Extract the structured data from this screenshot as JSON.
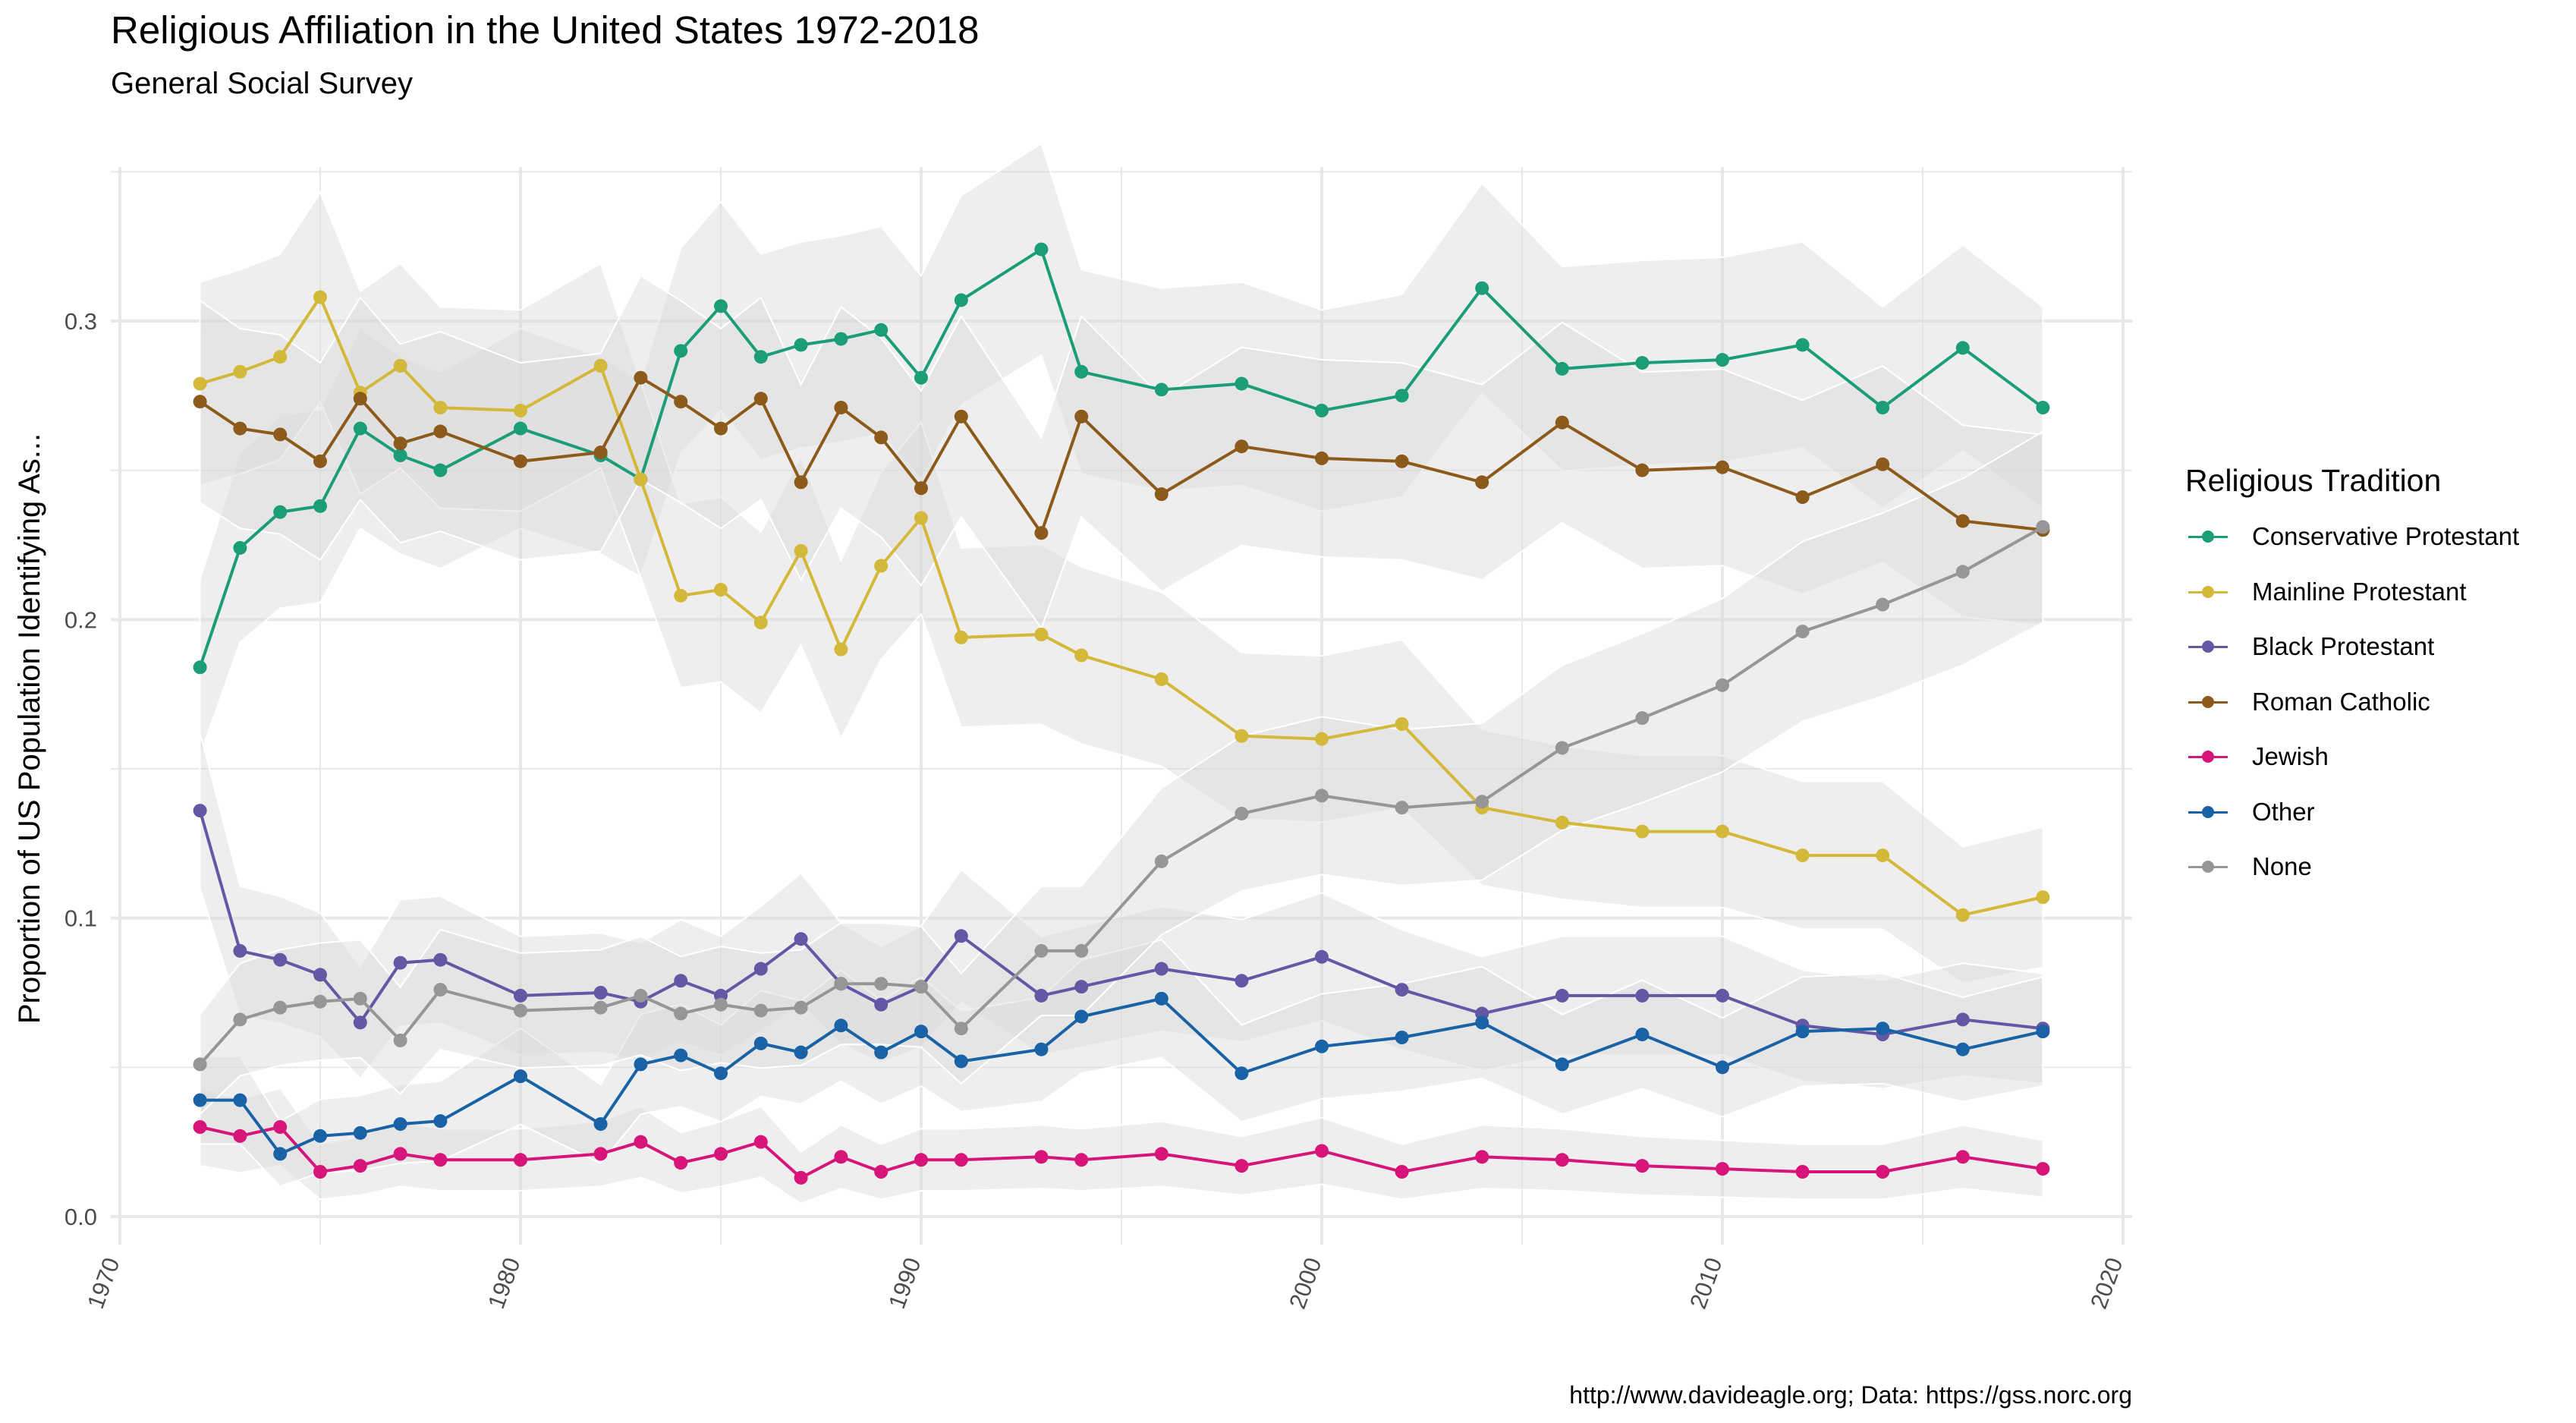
{
  "title": "Religious Affiliation in the United States 1972-2018",
  "subtitle": "General Social Survey",
  "caption": "http://www.davideagle.org; Data: https://gss.norc.org",
  "legend_title": "Religious Tradition",
  "colors": {
    "grid": "#e8e8e8",
    "ribbon": "#d9d9d9"
  },
  "chart_data": {
    "type": "line",
    "title": "Religious Affiliation in the United States 1972-2018",
    "subtitle": "General Social Survey",
    "xlabel": "",
    "ylabel": "Proportion of US Population Identifying As...",
    "xlim": [
      1970,
      2020
    ],
    "ylim": [
      0,
      0.35
    ],
    "x_ticks": [
      1970,
      1980,
      1990,
      2000,
      2010,
      2020
    ],
    "y_ticks": [
      0.0,
      0.1,
      0.2,
      0.3
    ],
    "y_tick_labels": [
      "0.0",
      "0.1",
      "0.2",
      "0.3"
    ],
    "x_tick_rotation": "vertical-ish, -70 degrees",
    "grid": true,
    "confidence_ribbons": true,
    "legend": "right",
    "x": [
      1972,
      1973,
      1974,
      1975,
      1976,
      1977,
      1978,
      1980,
      1982,
      1983,
      1984,
      1985,
      1986,
      1987,
      1988,
      1989,
      1990,
      1991,
      1993,
      1994,
      1996,
      1998,
      2000,
      2002,
      2004,
      2006,
      2008,
      2010,
      2012,
      2014,
      2016,
      2018
    ],
    "series": [
      {
        "name": "Conservative Protestant",
        "color": "#1b9e77",
        "values": [
          0.184,
          0.224,
          0.236,
          0.238,
          0.264,
          0.255,
          0.25,
          0.264,
          0.255,
          0.247,
          0.29,
          0.305,
          0.288,
          0.292,
          0.294,
          0.297,
          0.281,
          0.307,
          0.324,
          0.283,
          0.277,
          0.279,
          0.27,
          0.275,
          0.311,
          0.284,
          0.286,
          0.287,
          0.292,
          0.271,
          0.291,
          0.271
        ]
      },
      {
        "name": "Mainline Protestant",
        "color": "#d4b83a",
        "values": [
          0.279,
          0.283,
          0.288,
          0.308,
          0.276,
          0.285,
          0.271,
          0.27,
          0.285,
          0.247,
          0.208,
          0.21,
          0.199,
          0.223,
          0.19,
          0.218,
          0.234,
          0.194,
          0.195,
          0.188,
          0.18,
          0.161,
          0.16,
          0.165,
          0.137,
          0.132,
          0.129,
          0.129,
          0.121,
          0.121,
          0.101,
          0.107
        ]
      },
      {
        "name": "Black Protestant",
        "color": "#6458a6",
        "values": [
          0.136,
          0.089,
          0.086,
          0.081,
          0.065,
          0.085,
          0.086,
          0.074,
          0.075,
          0.072,
          0.079,
          0.074,
          0.083,
          0.093,
          0.078,
          0.071,
          0.077,
          0.094,
          0.074,
          0.077,
          0.083,
          0.079,
          0.087,
          0.076,
          0.068,
          0.074,
          0.074,
          0.074,
          0.064,
          0.061,
          0.066,
          0.063
        ]
      },
      {
        "name": "Roman Catholic",
        "color": "#8c5a1a",
        "values": [
          0.273,
          0.264,
          0.262,
          0.253,
          0.274,
          0.259,
          0.263,
          0.253,
          0.256,
          0.281,
          0.273,
          0.264,
          0.274,
          0.246,
          0.271,
          0.261,
          0.244,
          0.268,
          0.229,
          0.268,
          0.242,
          0.258,
          0.254,
          0.253,
          0.246,
          0.266,
          0.25,
          0.251,
          0.241,
          0.252,
          0.233,
          0.23
        ]
      },
      {
        "name": "Jewish",
        "color": "#d6147a",
        "values": [
          0.03,
          0.027,
          0.03,
          0.015,
          0.017,
          0.021,
          0.019,
          0.019,
          0.021,
          0.025,
          0.018,
          0.021,
          0.025,
          0.013,
          0.02,
          0.015,
          0.019,
          0.019,
          0.02,
          0.019,
          0.021,
          0.017,
          0.022,
          0.015,
          0.02,
          0.019,
          0.017,
          0.016,
          0.015,
          0.015,
          0.02,
          0.016
        ]
      },
      {
        "name": "Other",
        "color": "#1a62a6",
        "values": [
          0.039,
          0.039,
          0.021,
          0.027,
          0.028,
          0.031,
          0.032,
          0.047,
          0.031,
          0.051,
          0.054,
          0.048,
          0.058,
          0.055,
          0.064,
          0.055,
          0.062,
          0.052,
          0.056,
          0.067,
          0.073,
          0.048,
          0.057,
          0.06,
          0.065,
          0.051,
          0.061,
          0.05,
          0.062,
          0.063,
          0.056,
          0.062
        ]
      },
      {
        "name": "None",
        "color": "#969696",
        "values": [
          0.051,
          0.066,
          0.07,
          0.072,
          0.073,
          0.059,
          0.076,
          0.069,
          0.07,
          0.074,
          0.068,
          0.071,
          0.069,
          0.07,
          0.078,
          0.078,
          0.077,
          0.063,
          0.089,
          0.089,
          0.119,
          0.135,
          0.141,
          0.137,
          0.139,
          0.157,
          0.167,
          0.178,
          0.196,
          0.205,
          0.216,
          0.231
        ]
      }
    ]
  }
}
